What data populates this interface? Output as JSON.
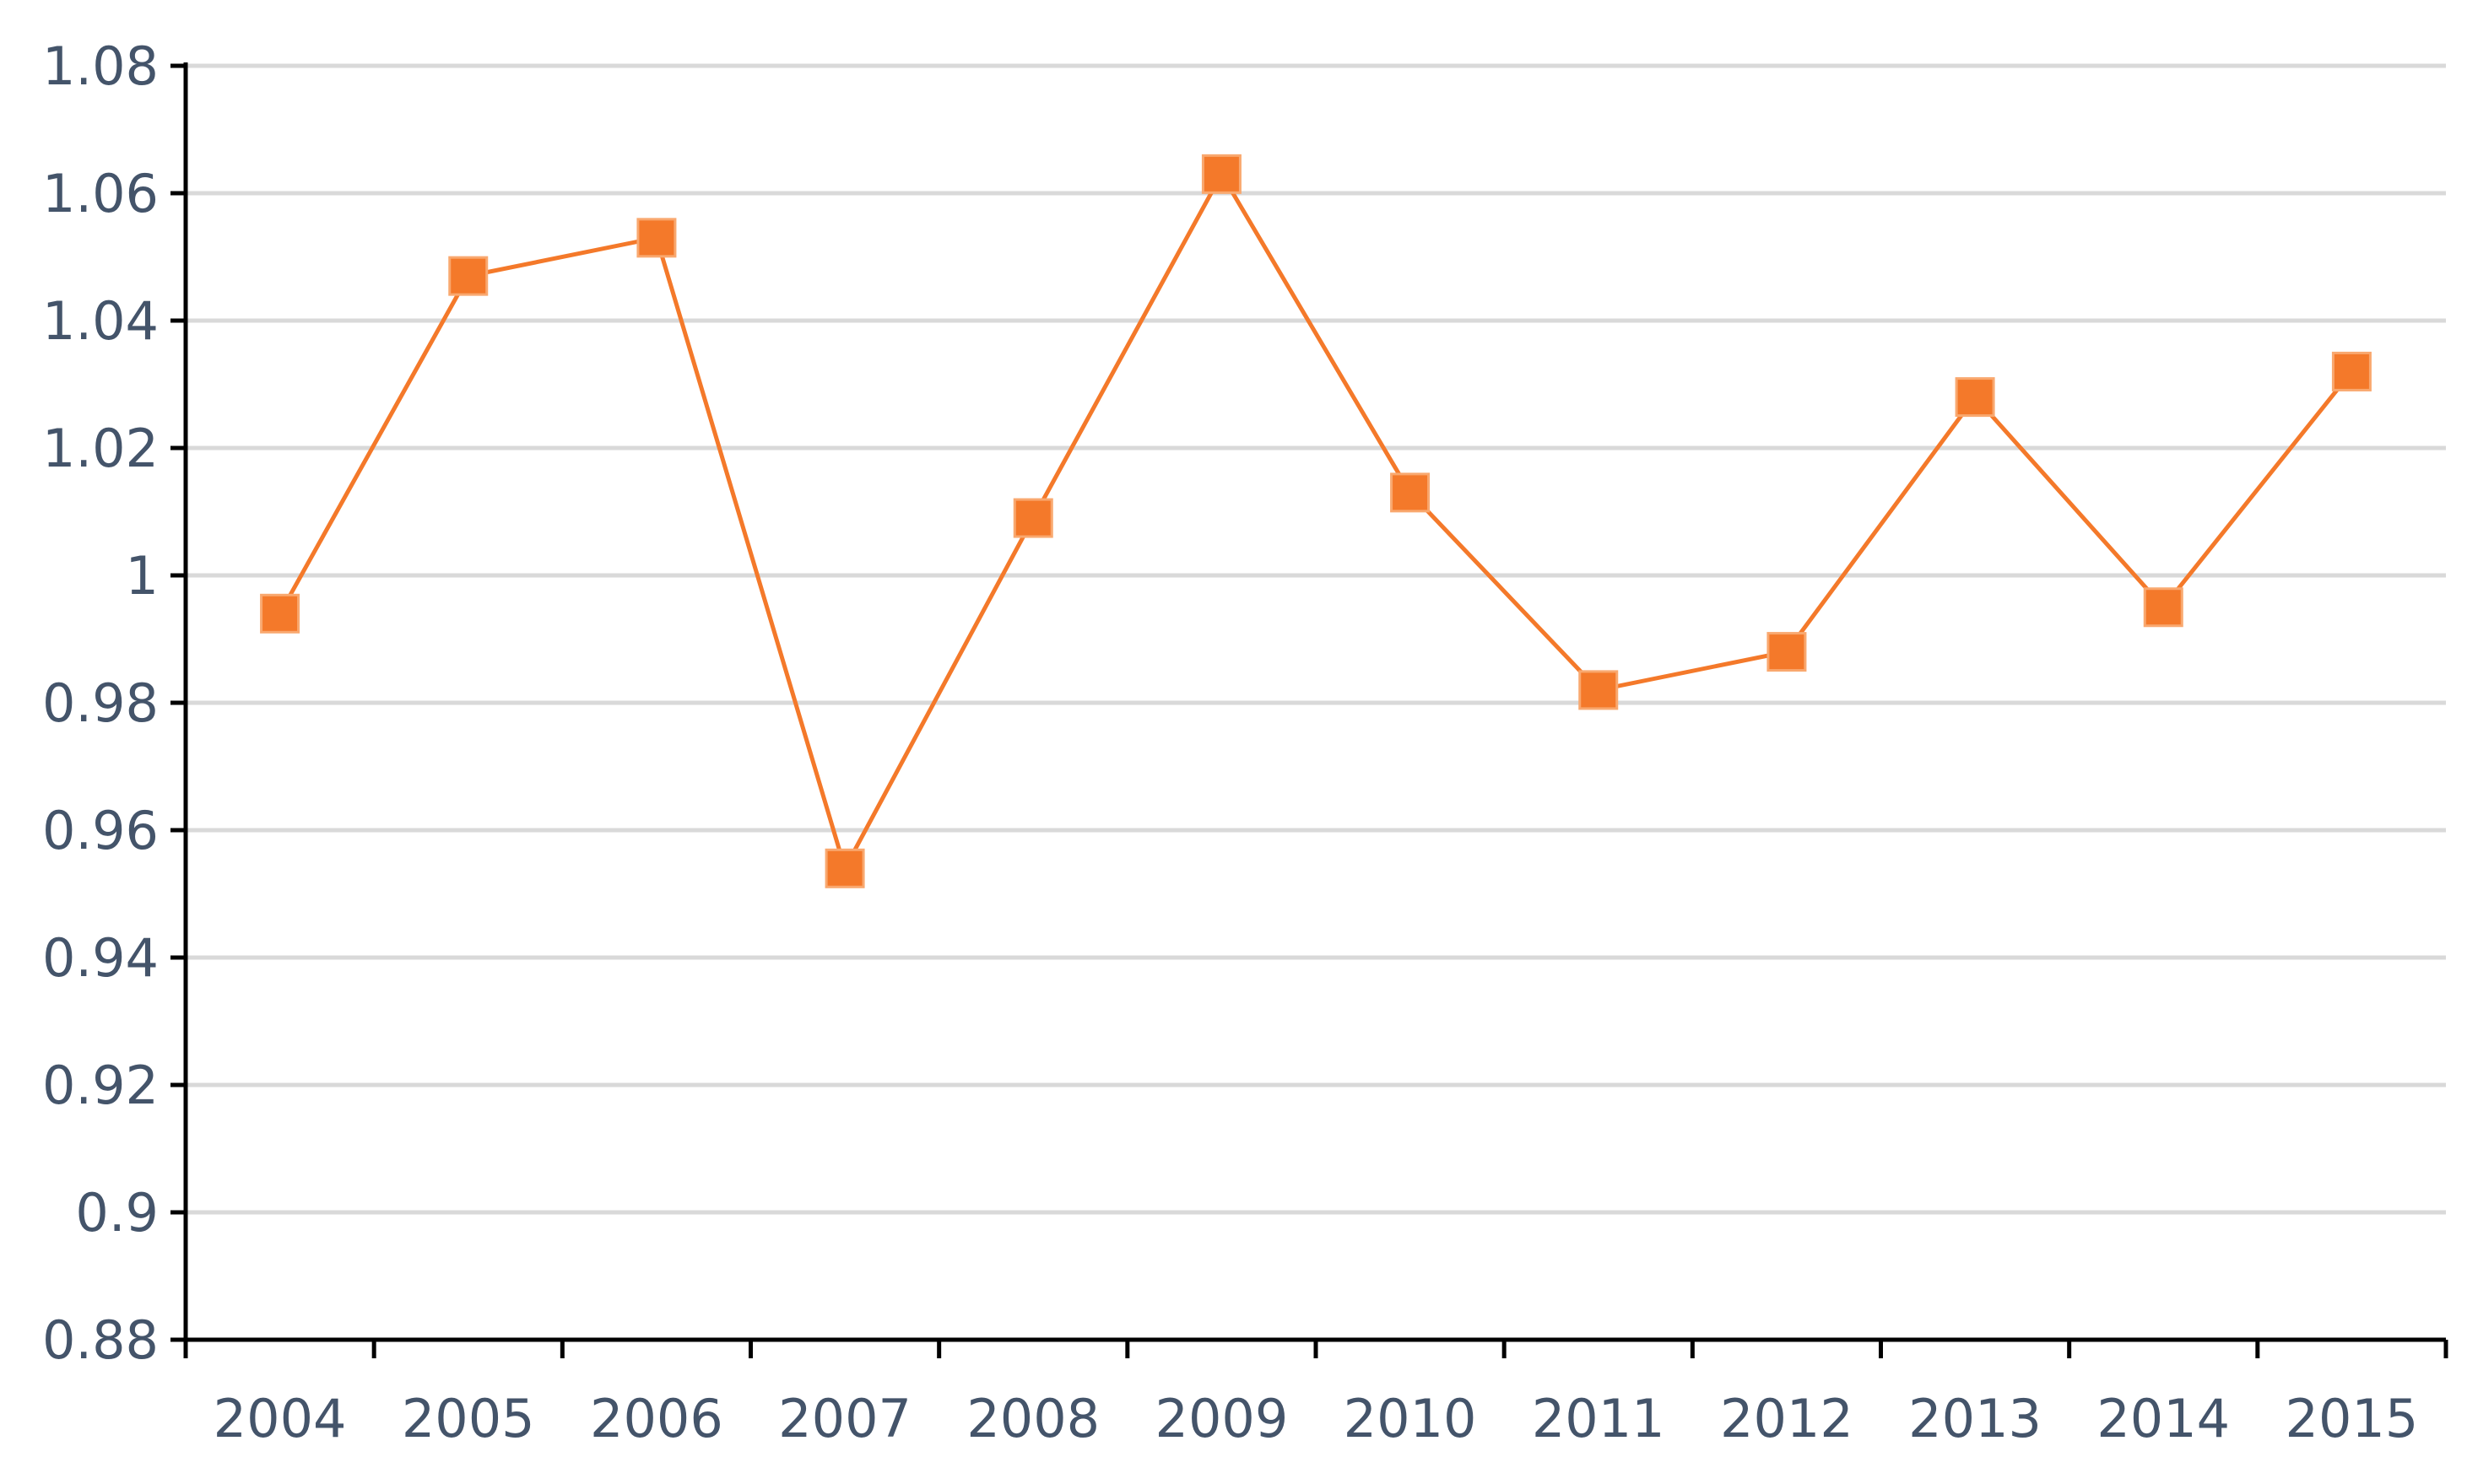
{
  "chart_data": {
    "type": "line",
    "title": "",
    "xlabel": "",
    "ylabel": "",
    "categories": [
      "2004",
      "2005",
      "2006",
      "2007",
      "2008",
      "2009",
      "2010",
      "2011",
      "2012",
      "2013",
      "2014",
      "2015"
    ],
    "series": [
      {
        "values": [
          0.994,
          1.047,
          1.053,
          0.954,
          1.009,
          1.063,
          1.013,
          0.982,
          0.988,
          1.028,
          0.995,
          1.032
        ],
        "color": "#f4792a",
        "marker": "square"
      }
    ],
    "ylim": [
      0.88,
      1.08
    ],
    "y_ticks": [
      "0.88",
      "0.9",
      "0.92",
      "0.94",
      "0.96",
      "0.98",
      "1",
      "1.02",
      "1.04",
      "1.06",
      "1.08"
    ],
    "grid": true,
    "legend": "none"
  }
}
